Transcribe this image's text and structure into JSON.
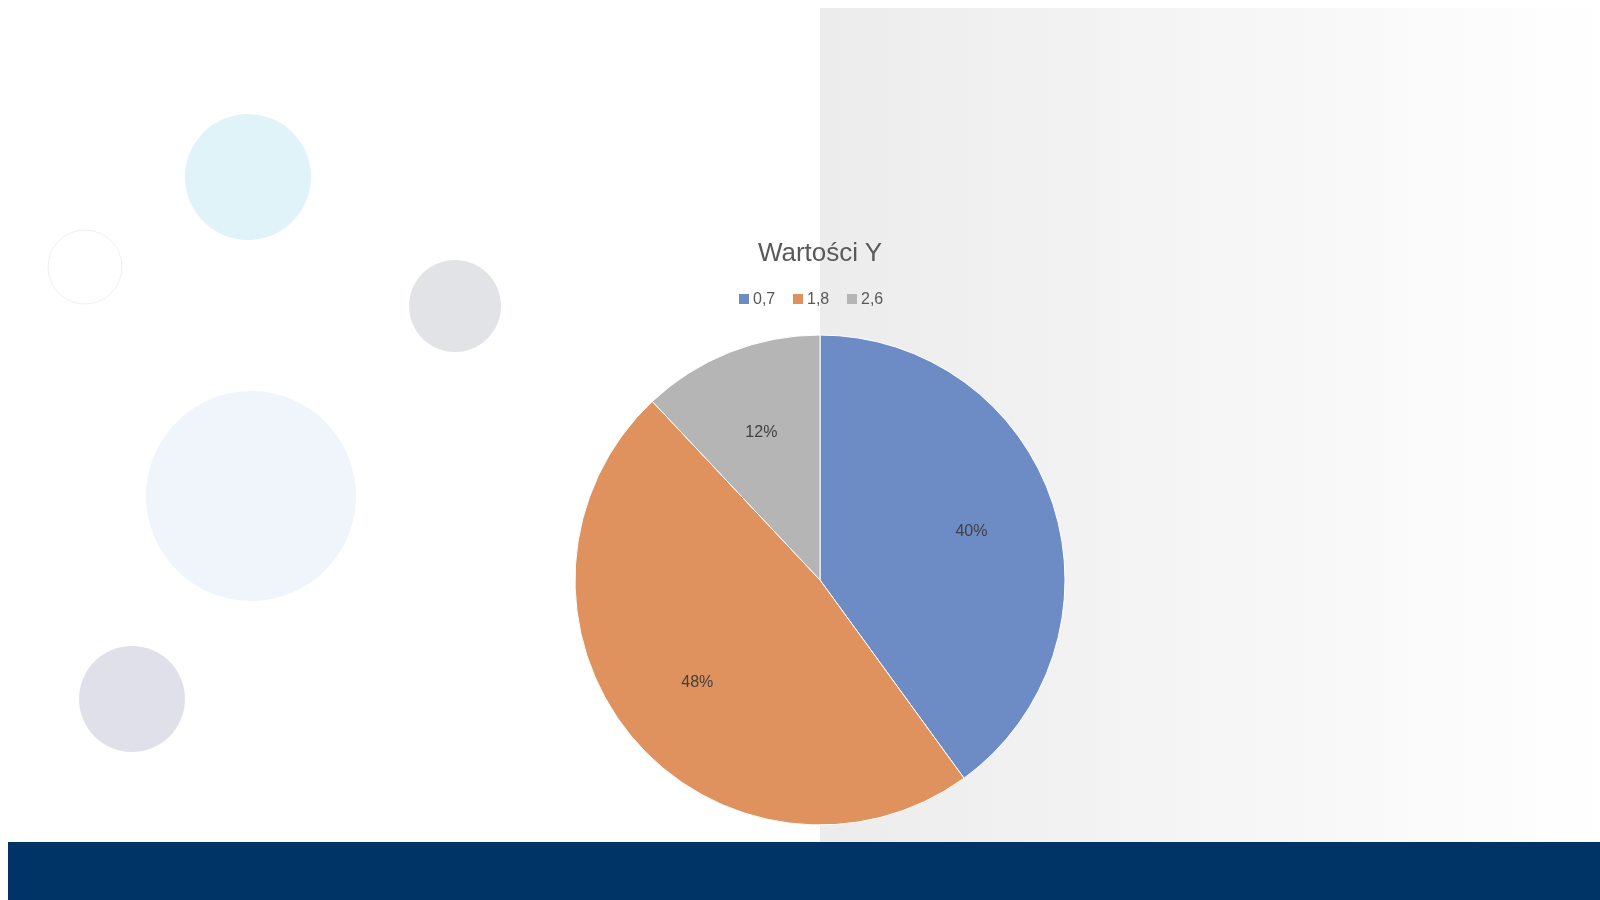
{
  "chart_data": {
    "type": "pie",
    "title": "Wartości Y",
    "categories": [
      "0,7",
      "1,8",
      "2,6"
    ],
    "values": [
      40,
      48,
      12
    ],
    "colors": [
      "#6d8cc6",
      "#e0925e",
      "#b5b5b5"
    ],
    "value_labels": [
      "40%",
      "48%",
      "12%"
    ],
    "legend": "top"
  }
}
